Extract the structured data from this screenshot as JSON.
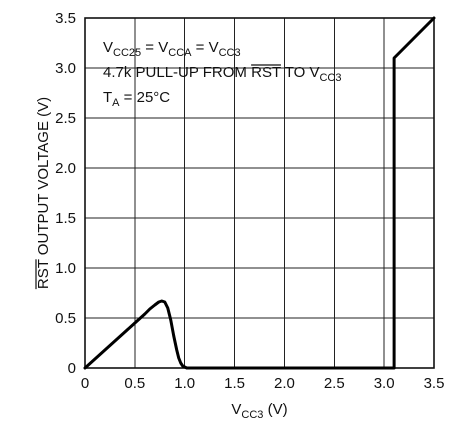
{
  "chart_data": {
    "type": "line",
    "xlabel": {
      "main": "V",
      "sub": "CC3",
      "unit": " (V)"
    },
    "ylabel": {
      "overbar": "RST",
      "rest": " OUTPUT VOLTAGE (V)"
    },
    "xlim": [
      0,
      3.5
    ],
    "ylim": [
      0,
      3.5
    ],
    "grid": true,
    "x_ticks": [
      "0",
      "0.5",
      "1.0",
      "1.5",
      "2.0",
      "2.5",
      "3.0",
      "3.5"
    ],
    "y_ticks": [
      "0",
      "0.5",
      "1.0",
      "1.5",
      "2.0",
      "2.5",
      "3.0",
      "3.5"
    ],
    "annotations": {
      "line1": [
        {
          "t": "V",
          "sub": false
        },
        {
          "t": "CC25",
          "sub": true
        },
        {
          "t": " = V",
          "sub": false
        },
        {
          "t": "CCA",
          "sub": true
        },
        {
          "t": " = V",
          "sub": false
        },
        {
          "t": "CC3",
          "sub": true
        }
      ],
      "line2": [
        {
          "t": "4.7k PULL-UP FROM ",
          "sub": false
        },
        {
          "t": "RST",
          "sub": false,
          "overbar": true
        },
        {
          "t": " TO V",
          "sub": false
        },
        {
          "t": "CC3",
          "sub": true
        }
      ],
      "line3": [
        {
          "t": "T",
          "sub": false
        },
        {
          "t": "A",
          "sub": true
        },
        {
          "t": " = 25°C",
          "sub": false
        }
      ]
    },
    "series": [
      {
        "x": [
          0,
          0.1,
          0.2,
          0.3,
          0.4,
          0.5,
          0.6,
          0.65,
          0.7,
          0.74,
          0.77,
          0.8,
          0.83,
          0.86,
          0.89,
          0.92,
          0.94,
          0.96,
          0.98,
          1.0,
          1.02,
          1.05,
          1.1,
          1.5,
          2.0,
          2.5,
          3.0,
          3.1,
          3.1,
          3.2,
          3.3,
          3.4,
          3.5
        ],
        "y": [
          0,
          0.09,
          0.18,
          0.27,
          0.36,
          0.45,
          0.54,
          0.59,
          0.63,
          0.66,
          0.67,
          0.66,
          0.6,
          0.48,
          0.32,
          0.18,
          0.1,
          0.05,
          0.02,
          0.01,
          0,
          0,
          0,
          0,
          0,
          0,
          0,
          0,
          3.1,
          3.2,
          3.3,
          3.4,
          3.5
        ]
      }
    ]
  }
}
